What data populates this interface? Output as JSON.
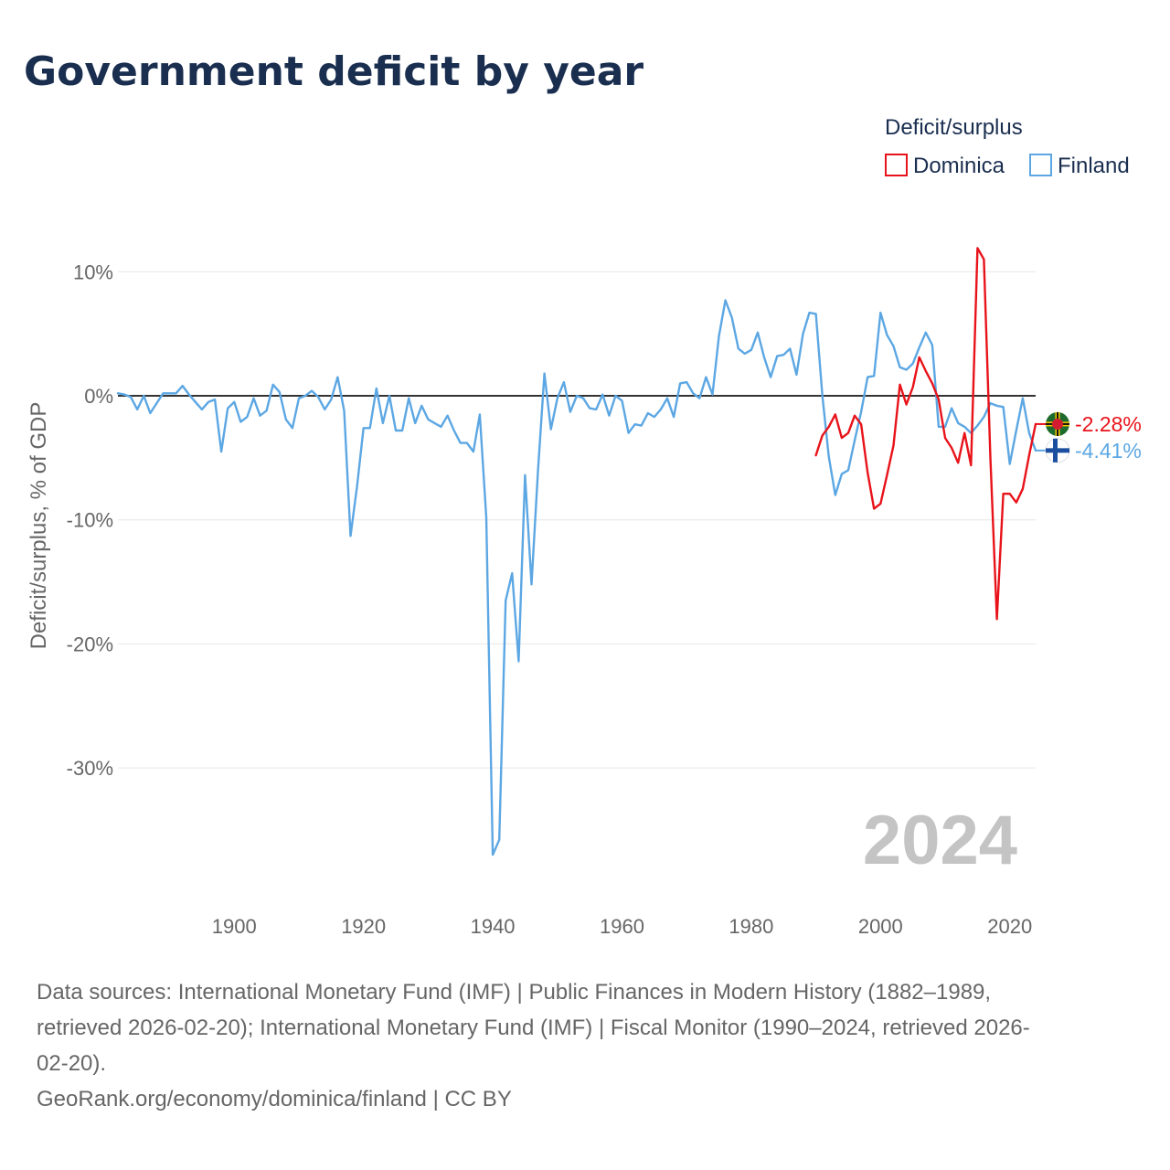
{
  "chart_data": {
    "type": "line",
    "title": "Government deficit by year",
    "ylabel": "Deficit/surplus, % of GDP",
    "xlabel": "",
    "xlim": [
      1882,
      2024
    ],
    "ylim": [
      -38,
      12
    ],
    "y_ticks": [
      10,
      0,
      -10,
      -20,
      -30
    ],
    "y_tick_labels": [
      "10%",
      "0%",
      "-10%",
      "-20%",
      "-30%"
    ],
    "x_ticks": [
      1900,
      1920,
      1940,
      1960,
      1980,
      2000,
      2020
    ],
    "x_tick_labels": [
      "1900",
      "1920",
      "1940",
      "1960",
      "1980",
      "2000",
      "2020"
    ],
    "year_label": "2024",
    "legend": {
      "title": "Deficit/surplus",
      "placement": "top-right",
      "entries": [
        "Dominica",
        "Finland"
      ]
    },
    "series": [
      {
        "name": "Dominica",
        "color": "#e8131a",
        "flag": "dominica-flag-icon",
        "end_label": "-2.28%",
        "points": [
          [
            1990,
            -4.8
          ],
          [
            1991,
            -3.2
          ],
          [
            1992,
            -2.5
          ],
          [
            1993,
            -1.5
          ],
          [
            1994,
            -3.4
          ],
          [
            1995,
            -3.0
          ],
          [
            1996,
            -1.6
          ],
          [
            1997,
            -2.3
          ],
          [
            1998,
            -6.2
          ],
          [
            1999,
            -9.1
          ],
          [
            2000,
            -8.7
          ],
          [
            2001,
            -6.4
          ],
          [
            2002,
            -4.0
          ],
          [
            2003,
            0.9
          ],
          [
            2004,
            -0.7
          ],
          [
            2005,
            0.7
          ],
          [
            2006,
            3.1
          ],
          [
            2007,
            2.0
          ],
          [
            2008,
            1.0
          ],
          [
            2009,
            -0.3
          ],
          [
            2010,
            -3.4
          ],
          [
            2011,
            -4.2
          ],
          [
            2012,
            -5.4
          ],
          [
            2013,
            -3.0
          ],
          [
            2014,
            -5.6
          ],
          [
            2015,
            11.9
          ],
          [
            2016,
            11.0
          ],
          [
            2017,
            -5.0
          ],
          [
            2018,
            -18.0
          ],
          [
            2019,
            -7.9
          ],
          [
            2020,
            -7.9
          ],
          [
            2021,
            -8.6
          ],
          [
            2022,
            -7.5
          ],
          [
            2023,
            -4.8
          ],
          [
            2024,
            -2.28
          ]
        ]
      },
      {
        "name": "Finland",
        "color": "#5ca7e3",
        "flag": "finland-flag-icon",
        "end_label": "-4.41%",
        "points": [
          [
            1882,
            0.2
          ],
          [
            1883,
            0.1
          ],
          [
            1884,
            -0.1
          ],
          [
            1885,
            -1.1
          ],
          [
            1886,
            0.0
          ],
          [
            1887,
            -1.4
          ],
          [
            1888,
            -0.6
          ],
          [
            1889,
            0.2
          ],
          [
            1890,
            0.2
          ],
          [
            1891,
            0.2
          ],
          [
            1892,
            0.8
          ],
          [
            1893,
            0.1
          ],
          [
            1894,
            -0.5
          ],
          [
            1895,
            -1.1
          ],
          [
            1896,
            -0.5
          ],
          [
            1897,
            -0.3
          ],
          [
            1898,
            -4.5
          ],
          [
            1899,
            -1.0
          ],
          [
            1900,
            -0.5
          ],
          [
            1901,
            -2.1
          ],
          [
            1902,
            -1.7
          ],
          [
            1903,
            -0.2
          ],
          [
            1904,
            -1.6
          ],
          [
            1905,
            -1.2
          ],
          [
            1906,
            0.9
          ],
          [
            1907,
            0.3
          ],
          [
            1908,
            -1.9
          ],
          [
            1909,
            -2.6
          ],
          [
            1910,
            -0.2
          ],
          [
            1911,
            0.0
          ],
          [
            1912,
            0.4
          ],
          [
            1913,
            -0.1
          ],
          [
            1914,
            -1.1
          ],
          [
            1915,
            -0.3
          ],
          [
            1916,
            1.5
          ],
          [
            1917,
            -1.2
          ],
          [
            1918,
            -11.3
          ],
          [
            1919,
            -7.3
          ],
          [
            1920,
            -2.6
          ],
          [
            1921,
            -2.6
          ],
          [
            1922,
            0.6
          ],
          [
            1923,
            -2.2
          ],
          [
            1924,
            0.0
          ],
          [
            1925,
            -2.8
          ],
          [
            1926,
            -2.8
          ],
          [
            1927,
            -0.2
          ],
          [
            1928,
            -2.2
          ],
          [
            1929,
            -0.8
          ],
          [
            1930,
            -1.9
          ],
          [
            1931,
            -2.2
          ],
          [
            1932,
            -2.5
          ],
          [
            1933,
            -1.6
          ],
          [
            1934,
            -2.8
          ],
          [
            1935,
            -3.8
          ],
          [
            1936,
            -3.8
          ],
          [
            1937,
            -4.5
          ],
          [
            1938,
            -1.5
          ],
          [
            1939,
            -9.8
          ],
          [
            1940,
            -37.0
          ],
          [
            1941,
            -35.8
          ],
          [
            1942,
            -16.5
          ],
          [
            1943,
            -14.3
          ],
          [
            1944,
            -21.4
          ],
          [
            1945,
            -6.4
          ],
          [
            1946,
            -15.2
          ],
          [
            1947,
            -6.0
          ],
          [
            1948,
            1.8
          ],
          [
            1949,
            -2.7
          ],
          [
            1950,
            -0.2
          ],
          [
            1951,
            1.1
          ],
          [
            1952,
            -1.3
          ],
          [
            1953,
            0.0
          ],
          [
            1954,
            -0.2
          ],
          [
            1955,
            -1.0
          ],
          [
            1956,
            -1.1
          ],
          [
            1957,
            0.1
          ],
          [
            1958,
            -1.6
          ],
          [
            1959,
            0.0
          ],
          [
            1960,
            -0.4
          ],
          [
            1961,
            -3.0
          ],
          [
            1962,
            -2.3
          ],
          [
            1963,
            -2.4
          ],
          [
            1964,
            -1.4
          ],
          [
            1965,
            -1.7
          ],
          [
            1966,
            -1.1
          ],
          [
            1967,
            -0.2
          ],
          [
            1968,
            -1.7
          ],
          [
            1969,
            1.0
          ],
          [
            1970,
            1.1
          ],
          [
            1971,
            0.2
          ],
          [
            1972,
            -0.2
          ],
          [
            1973,
            1.5
          ],
          [
            1974,
            0.1
          ],
          [
            1975,
            4.8
          ],
          [
            1976,
            7.7
          ],
          [
            1977,
            6.3
          ],
          [
            1978,
            3.8
          ],
          [
            1979,
            3.4
          ],
          [
            1980,
            3.7
          ],
          [
            1981,
            5.1
          ],
          [
            1982,
            3.1
          ],
          [
            1983,
            1.5
          ],
          [
            1984,
            3.2
          ],
          [
            1985,
            3.3
          ],
          [
            1986,
            3.8
          ],
          [
            1987,
            1.7
          ],
          [
            1988,
            5.0
          ],
          [
            1989,
            6.7
          ],
          [
            1990,
            6.6
          ],
          [
            1991,
            0.0
          ],
          [
            1992,
            -4.9
          ],
          [
            1993,
            -8.0
          ],
          [
            1994,
            -6.3
          ],
          [
            1995,
            -6.0
          ],
          [
            1996,
            -3.6
          ],
          [
            1997,
            -1.3
          ],
          [
            1998,
            1.5
          ],
          [
            1999,
            1.6
          ],
          [
            2000,
            6.7
          ],
          [
            2001,
            4.9
          ],
          [
            2002,
            4.0
          ],
          [
            2003,
            2.3
          ],
          [
            2004,
            2.1
          ],
          [
            2005,
            2.6
          ],
          [
            2006,
            3.9
          ],
          [
            2007,
            5.1
          ],
          [
            2008,
            4.1
          ],
          [
            2009,
            -2.5
          ],
          [
            2010,
            -2.5
          ],
          [
            2011,
            -1.0
          ],
          [
            2012,
            -2.2
          ],
          [
            2013,
            -2.5
          ],
          [
            2014,
            -3.0
          ],
          [
            2015,
            -2.4
          ],
          [
            2016,
            -1.7
          ],
          [
            2017,
            -0.6
          ],
          [
            2018,
            -0.8
          ],
          [
            2019,
            -0.9
          ],
          [
            2020,
            -5.5
          ],
          [
            2021,
            -2.8
          ],
          [
            2022,
            -0.2
          ],
          [
            2023,
            -3.0
          ],
          [
            2024,
            -4.41
          ]
        ]
      }
    ]
  },
  "footer": {
    "source_line_1": "Data sources: International Monetary Fund (IMF) | Public Finances in Modern History (1882–1989,",
    "source_line_2": "retrieved 2026-02-20); International Monetary Fund (IMF) | Fiscal Monitor (1990–2024, retrieved 2026-",
    "source_line_3": "02-20).",
    "credit": "GeoRank.org/economy/dominica/finland | CC BY"
  }
}
